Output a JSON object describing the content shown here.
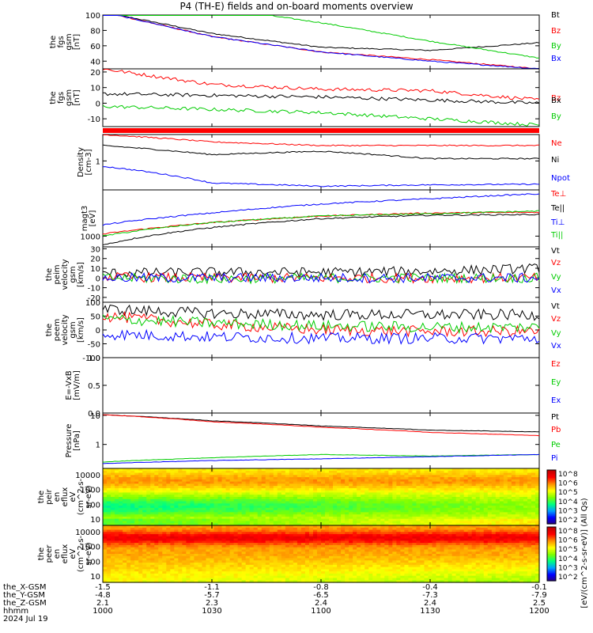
{
  "title": "P4 (TH-E) fields and on-board moments overview",
  "colors": {
    "black": "#000000",
    "red": "#ff0000",
    "green": "#00cc00",
    "blue": "#0000ff",
    "stripe": "#ff0000"
  },
  "footer": {
    "row_labels": [
      "the_X-GSM",
      "the_Y-GSM",
      "the_Z-GSM",
      "hhmm",
      "2024 Jul 19"
    ],
    "columns": [
      {
        "x": -1.5,
        "y": -4.8,
        "z": 2.1,
        "hhmm": "1000"
      },
      {
        "x": -1.1,
        "y": -5.7,
        "z": 2.3,
        "hhmm": "1030"
      },
      {
        "x": -0.8,
        "y": -6.5,
        "z": 2.4,
        "hhmm": "1100"
      },
      {
        "x": -0.4,
        "y": -7.3,
        "z": 2.4,
        "hhmm": "1130"
      },
      {
        "x": -0.1,
        "y": -7.9,
        "z": 2.5,
        "hhmm": "1200"
      }
    ]
  },
  "colorbar": {
    "label": "[eV/(cm^2-s-sr-eV)] (All Qs)",
    "upper_ticks": [
      "10^8",
      "10^6",
      "10^5",
      "10^4",
      "10^3",
      "10^2"
    ],
    "lower_ticks": [
      "10^8",
      "10^6",
      "10^5",
      "10^4",
      "10^3",
      "10^2"
    ]
  },
  "chart_data": [
    {
      "id": "fgs_gsm_mag",
      "type": "line",
      "ylabel": [
        "the",
        "fgs",
        "gsm",
        "[nT]"
      ],
      "ylim": [
        30,
        100
      ],
      "yticks": [
        "100",
        "80",
        "60",
        "40"
      ],
      "x": [
        "10:00",
        "10:30",
        "11:00",
        "11:30",
        "12:00"
      ],
      "series": [
        {
          "name": "Bt",
          "color": "#000000",
          "values": [
            104,
            76,
            58,
            54,
            64
          ]
        },
        {
          "name": "Bz",
          "color": "#ff0000",
          "values": [
            104,
            72,
            52,
            42,
            30
          ]
        },
        {
          "name": "By",
          "color": "#00cc00",
          "values": [
            123,
            110,
            90,
            66,
            44
          ]
        },
        {
          "name": "Bx",
          "color": "#0000ff",
          "values": [
            104,
            72,
            52,
            40,
            30
          ]
        }
      ]
    },
    {
      "id": "fgs_gsm_comp",
      "type": "line",
      "ylabel": [
        "the",
        "fgs",
        "gsm",
        "[nT]"
      ],
      "ylim": [
        -15,
        22
      ],
      "yticks": [
        "20",
        "10",
        "0",
        "-10"
      ],
      "x": [
        "10:00",
        "10:30",
        "11:00",
        "11:30",
        "12:00"
      ],
      "series": [
        {
          "name": "Bz",
          "color": "#ff0000",
          "values": [
            22,
            12,
            9,
            8,
            2
          ]
        },
        {
          "name": "Bx",
          "color": "#000000",
          "values": [
            6,
            5,
            4,
            2,
            0
          ]
        },
        {
          "name": "By",
          "color": "#00cc00",
          "values": [
            -2,
            -4,
            -6,
            -10,
            -14
          ]
        }
      ]
    },
    {
      "id": "density",
      "type": "line",
      "ylabel": [
        "Density",
        "[cm-3]"
      ],
      "ylim_log": [
        0.3,
        3.0
      ],
      "yticks": [
        "1"
      ],
      "x": [
        "10:00",
        "10:30",
        "11:00",
        "11:30",
        "12:00"
      ],
      "series": [
        {
          "name": "Ne",
          "color": "#ff0000",
          "values": [
            3.0,
            2.2,
            1.9,
            1.9,
            1.9
          ]
        },
        {
          "name": "Ni",
          "color": "#000000",
          "values": [
            1.9,
            1.3,
            1.5,
            1.1,
            1.1
          ]
        },
        {
          "name": "Npot",
          "color": "#0000ff",
          "values": [
            0.8,
            0.4,
            0.35,
            0.37,
            0.38
          ]
        }
      ]
    },
    {
      "id": "temperature",
      "type": "line",
      "ylabel": [
        "magt3",
        "[eV]"
      ],
      "ylim_log": [
        600,
        9000
      ],
      "yticks": [
        "1000"
      ],
      "x": [
        "10:00",
        "10:30",
        "11:00",
        "11:30",
        "12:00"
      ],
      "series": [
        {
          "name": "Te⊥",
          "color": "#ff0000",
          "values": [
            1100,
            1900,
            2600,
            3000,
            3100
          ]
        },
        {
          "name": "Te||",
          "color": "#000000",
          "values": [
            650,
            1500,
            2300,
            2700,
            2800
          ]
        },
        {
          "name": "Ti⊥",
          "color": "#0000ff",
          "values": [
            1700,
            3000,
            4600,
            5900,
            7500
          ]
        },
        {
          "name": "Ti||",
          "color": "#00cc00",
          "values": [
            1000,
            1900,
            2600,
            2900,
            3300
          ]
        }
      ]
    },
    {
      "id": "peim_velocity",
      "type": "line",
      "ylabel": [
        "the",
        "peim",
        "velocity",
        "gsm",
        "[km/s]"
      ],
      "ylim": [
        -25,
        32
      ],
      "yticks": [
        "30",
        "20",
        "10",
        "0",
        "-10",
        "-20"
      ],
      "x": [
        "10:00",
        "10:30",
        "11:00",
        "11:30",
        "12:00"
      ],
      "series": [
        {
          "name": "Vt",
          "color": "#000000",
          "values": [
            5,
            6,
            6,
            7,
            10
          ]
        },
        {
          "name": "Vz",
          "color": "#ff0000",
          "values": [
            1,
            0,
            0,
            0,
            0
          ]
        },
        {
          "name": "Vy",
          "color": "#00cc00",
          "values": [
            0,
            -1,
            0,
            0,
            0
          ]
        },
        {
          "name": "Vx",
          "color": "#0000ff",
          "values": [
            0,
            0,
            0,
            0,
            0
          ]
        }
      ]
    },
    {
      "id": "peem_velocity",
      "type": "line",
      "ylabel": [
        "the",
        "peem",
        "velocity",
        "gsm",
        "[km/s]"
      ],
      "ylim": [
        -100,
        100
      ],
      "yticks": [
        "100",
        "50",
        "0",
        "-50",
        "-100"
      ],
      "x": [
        "10:00",
        "10:30",
        "11:00",
        "11:30",
        "12:00"
      ],
      "series": [
        {
          "name": "Vt",
          "color": "#000000",
          "values": [
            75,
            60,
            55,
            55,
            55
          ]
        },
        {
          "name": "Vz",
          "color": "#ff0000",
          "values": [
            50,
            20,
            0,
            -5,
            -5
          ]
        },
        {
          "name": "Vy",
          "color": "#00cc00",
          "values": [
            40,
            25,
            15,
            10,
            10
          ]
        },
        {
          "name": "Vx",
          "color": "#0000ff",
          "values": [
            -15,
            -25,
            -30,
            -30,
            -30
          ]
        }
      ]
    },
    {
      "id": "efield",
      "type": "line",
      "ylabel": [
        "E=-VxB",
        "[mV/m]"
      ],
      "ylim": [
        0,
        1
      ],
      "yticks": [
        "1.0",
        "0.5",
        "0.0"
      ],
      "series": [
        {
          "name": "Ez",
          "color": "#ff0000",
          "values": []
        },
        {
          "name": "Ey",
          "color": "#00cc00",
          "values": []
        },
        {
          "name": "Ex",
          "color": "#0000ff",
          "values": []
        }
      ]
    },
    {
      "id": "pressure",
      "type": "line",
      "ylabel": [
        "Pressure",
        "[nPa]"
      ],
      "ylim_log": [
        0.15,
        12
      ],
      "yticks": [
        "10",
        "1"
      ],
      "x": [
        "10:00",
        "10:30",
        "11:00",
        "11:30",
        "12:00"
      ],
      "series": [
        {
          "name": "Pt",
          "color": "#000000",
          "values": [
            10.5,
            6.5,
            4.3,
            3.1,
            2.7
          ]
        },
        {
          "name": "Pb",
          "color": "#ff0000",
          "values": [
            10.5,
            6.0,
            3.9,
            2.6,
            2.0
          ]
        },
        {
          "name": "Pe",
          "color": "#00cc00",
          "values": [
            0.25,
            0.35,
            0.45,
            0.4,
            0.45
          ]
        },
        {
          "name": "Pi",
          "color": "#0000ff",
          "values": [
            0.22,
            0.28,
            0.32,
            0.38,
            0.45
          ]
        }
      ]
    },
    {
      "id": "peir_eflux",
      "type": "heatmap",
      "ylabel": [
        "the",
        "peir",
        "en",
        "eflux",
        "eV",
        "(cm^2-s-",
        "sr-eV)"
      ],
      "yticks": [
        "10000",
        "1000",
        "100",
        "10"
      ]
    },
    {
      "id": "peer_eflux",
      "type": "heatmap",
      "ylabel": [
        "the",
        "peer",
        "en",
        "eflux",
        "eV",
        "(cm^2-s-",
        "sr-eV)"
      ],
      "yticks": [
        "10000",
        "1000",
        "100",
        "10"
      ]
    }
  ]
}
